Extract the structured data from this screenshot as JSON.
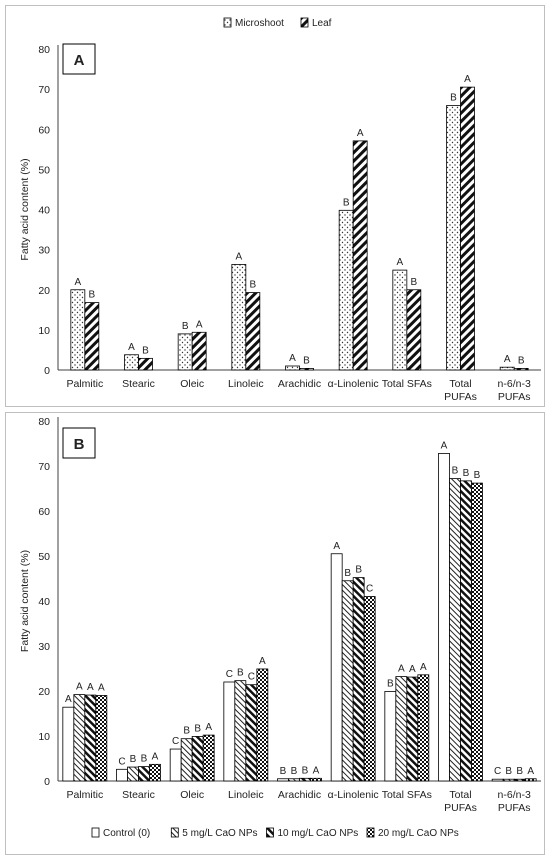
{
  "figure": {
    "panel_a_label": "A",
    "panel_b_label": "B"
  },
  "colors": {
    "axis": "#404040",
    "bar_stroke": "#000000",
    "text": "#222222"
  },
  "chart_data": [
    {
      "type": "bar",
      "panel": "A",
      "ylabel": "Fatty acid content (%)",
      "ylim": [
        0,
        80
      ],
      "yticks": [
        0,
        10,
        20,
        30,
        40,
        50,
        60,
        70,
        80
      ],
      "categories": [
        "Palmitic",
        "Stearic",
        "Oleic",
        "Linoleic",
        "Arachidic",
        "α-Linolenic",
        "Total SFAs",
        "Total PUFAs",
        "n-6/n-3 PUFAs"
      ],
      "category_lines": [
        [
          "Palmitic"
        ],
        [
          "Stearic"
        ],
        [
          "Oleic"
        ],
        [
          "Linoleic"
        ],
        [
          "Arachidic"
        ],
        [
          "α-Linolenic"
        ],
        [
          "Total SFAs"
        ],
        [
          "Total",
          "PUFAs"
        ],
        [
          "n-6/n-3",
          "PUFAs"
        ]
      ],
      "legend_position": "top",
      "grid": false,
      "series": [
        {
          "name": "Microshoot",
          "pattern": "dots",
          "values": [
            20.0,
            3.8,
            9.0,
            26.3,
            1.0,
            39.8,
            24.9,
            65.9,
            0.7
          ],
          "letters": [
            "A",
            "A",
            "B",
            "A",
            "A",
            "B",
            "A",
            "B",
            "A"
          ]
        },
        {
          "name": "Leaf",
          "pattern": "hatch-wide",
          "values": [
            16.8,
            2.9,
            9.4,
            19.3,
            0.4,
            57.1,
            20.0,
            70.5,
            0.4
          ],
          "letters": [
            "B",
            "B",
            "A",
            "B",
            "B",
            "A",
            "B",
            "A",
            "B"
          ]
        }
      ]
    },
    {
      "type": "bar",
      "panel": "B",
      "ylabel": "Fatty acid content (%)",
      "ylim": [
        0,
        80
      ],
      "yticks": [
        0,
        10,
        20,
        30,
        40,
        50,
        60,
        70,
        80
      ],
      "categories": [
        "Palmitic",
        "Stearic",
        "Oleic",
        "Linoleic",
        "Arachidic",
        "α-Linolenic",
        "Total SFAs",
        "Total PUFAs",
        "n-6/n-3 PUFAs"
      ],
      "category_lines": [
        [
          "Palmitic"
        ],
        [
          "Stearic"
        ],
        [
          "Oleic"
        ],
        [
          "Linoleic"
        ],
        [
          "Arachidic"
        ],
        [
          "α-Linolenic"
        ],
        [
          "Total SFAs"
        ],
        [
          "Total",
          "PUFAs"
        ],
        [
          "n-6/n-3",
          "PUFAs"
        ]
      ],
      "legend_position": "bottom",
      "grid": false,
      "series": [
        {
          "name": "Control (0)",
          "pattern": "solid-white",
          "values": [
            16.4,
            2.6,
            7.1,
            22.0,
            0.5,
            50.5,
            19.9,
            72.8,
            0.4
          ],
          "letters": [
            "A",
            "C",
            "C",
            "C",
            "B",
            "A",
            "B",
            "A",
            "C"
          ]
        },
        {
          "name": "5 mg/L CaO NPs",
          "pattern": "fine-diagonal",
          "values": [
            19.2,
            3.1,
            9.4,
            22.3,
            0.5,
            44.5,
            23.2,
            67.2,
            0.4
          ],
          "letters": [
            "A",
            "B",
            "B",
            "B",
            "B",
            "B",
            "A",
            "B",
            "B"
          ]
        },
        {
          "name": "10 mg/L CaO NPs",
          "pattern": "wide-diagonal",
          "values": [
            19.1,
            3.2,
            9.9,
            21.4,
            0.6,
            45.2,
            23.1,
            66.7,
            0.4
          ],
          "letters": [
            "A",
            "B",
            "B",
            "C",
            "B",
            "B",
            "A",
            "B",
            "B"
          ]
        },
        {
          "name": "20 mg/L CaO NPs",
          "pattern": "checker",
          "values": [
            19.0,
            3.7,
            10.2,
            24.9,
            0.6,
            41.0,
            23.6,
            66.2,
            0.5
          ],
          "letters": [
            "A",
            "A",
            "A",
            "A",
            "A",
            "C",
            "A",
            "B",
            "A"
          ]
        }
      ]
    }
  ]
}
